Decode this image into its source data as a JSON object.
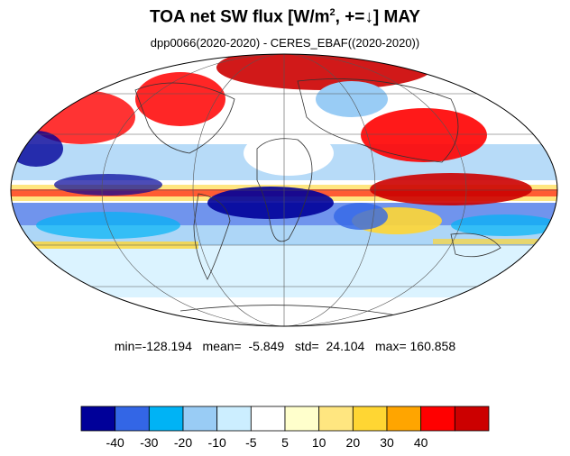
{
  "header": {
    "title_prefix": "TOA net SW flux [W/m",
    "title_sup": "2",
    "title_suffix": ", +=↓]  MAY",
    "subtitle": "dpp0066(2020-2020) - CERES_EBAF((2020-2020))"
  },
  "stats": {
    "text": "min=-128.194   mean=  -5.849   std=  24.104   max= 160.858"
  },
  "colorbar": {
    "colors": [
      "#000099",
      "#3366e6",
      "#00b3f5",
      "#99ccf5",
      "#cceeff",
      "#ffffff",
      "#ffffcc",
      "#ffe680",
      "#ffd633",
      "#ffa500",
      "#ff0000",
      "#cc0000"
    ],
    "tick_labels": [
      "-40",
      "-30",
      "-20",
      "-10",
      "-5",
      "5",
      "10",
      "20",
      "30",
      "40"
    ]
  }
}
